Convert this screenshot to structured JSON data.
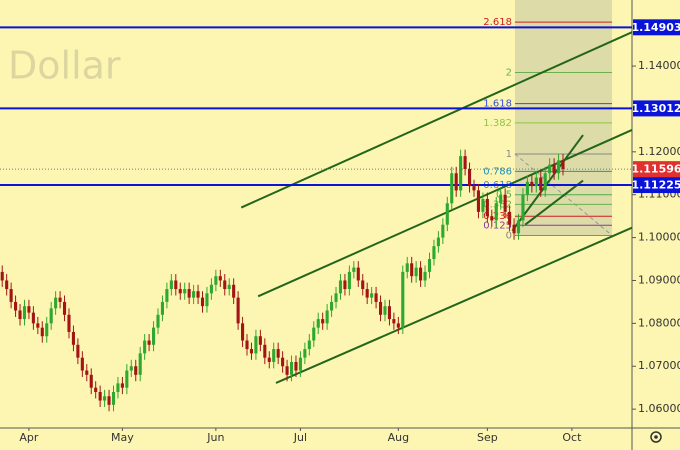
{
  "chart_data": {
    "type": "candlestick",
    "watermark": "Dollar",
    "up_color": "#2ea82e",
    "down_color": "#a31515",
    "xlim": [
      -0.5,
      141.5
    ],
    "xticks": [
      {
        "value": 6,
        "label": "Apr"
      },
      {
        "value": 27,
        "label": "May"
      },
      {
        "value": 48,
        "label": "Jun"
      },
      {
        "value": 67,
        "label": "Jul"
      },
      {
        "value": 89,
        "label": "Aug"
      },
      {
        "value": 109,
        "label": "Sep"
      },
      {
        "value": 128,
        "label": "Oct"
      }
    ],
    "ylim": [
      1.0556,
      1.1554
    ],
    "yticks": [
      {
        "value": 1.06,
        "label": "1.06000"
      },
      {
        "value": 1.07,
        "label": "1.07000"
      },
      {
        "value": 1.08,
        "label": "1.08000"
      },
      {
        "value": 1.09,
        "label": "1.09000"
      },
      {
        "value": 1.1,
        "label": "1.10000"
      },
      {
        "value": 1.11,
        "label": "1.11000"
      },
      {
        "value": 1.12,
        "label": "1.12000"
      },
      {
        "value": 1.14,
        "label": "1.14000"
      }
    ],
    "levels": [
      {
        "value": 1.14903,
        "color": "#0a14d8"
      },
      {
        "value": 1.13012,
        "color": "#0a14d8"
      },
      {
        "value": 1.11225,
        "color": "#0a14d8"
      }
    ],
    "last": {
      "value": 1.11596,
      "color": "#e03030"
    },
    "trend_color": "#23651a",
    "trend_lines": [
      {
        "x": [
          53.7,
          141.5
        ],
        "y": [
          1.107,
          1.1479
        ]
      },
      {
        "x": [
          57.5,
          141.5
        ],
        "y": [
          1.0863,
          1.1251
        ]
      },
      {
        "x": [
          61.5,
          141.5
        ],
        "y": [
          1.0661,
          1.1023
        ]
      },
      {
        "x": [
          114.6,
          130.5
        ],
        "y": [
          1.1016,
          1.1239
        ]
      },
      {
        "x": [
          117.5,
          130.5
        ],
        "y": [
          1.103,
          1.1133
        ]
      }
    ],
    "fib": {
      "x": [
        115.2,
        137
      ],
      "low": 1.1005,
      "high": 1.1195,
      "ratios": [
        2.618,
        2,
        1.618,
        1.382,
        1,
        0.786,
        0.618,
        0.5,
        0.382,
        0.236,
        0.125,
        0
      ],
      "colors": [
        "#d02020",
        "#6ab04c",
        "#3a4ee0",
        "#8cc63f",
        "#888888",
        "#1e90c0",
        "#3a7ee0",
        "#4caf50",
        "#6ab04c",
        "#d02020",
        "#8a3aa8",
        "#888888"
      ]
    },
    "ohlc": [
      [
        1.092,
        1.0935,
        1.0885,
        1.09
      ],
      [
        1.09,
        1.0915,
        1.0865,
        1.088
      ],
      [
        1.088,
        1.0895,
        1.0835,
        1.085
      ],
      [
        1.085,
        1.0865,
        1.0815,
        1.083
      ],
      [
        1.083,
        1.0845,
        1.0795,
        1.081
      ],
      [
        1.081,
        1.0855,
        1.0795,
        1.084
      ],
      [
        1.084,
        1.0855,
        1.081,
        1.0825
      ],
      [
        1.0825,
        1.084,
        1.0785,
        1.08
      ],
      [
        1.08,
        1.0815,
        1.0775,
        1.079
      ],
      [
        1.079,
        1.0805,
        1.0755,
        1.077
      ],
      [
        1.077,
        1.0815,
        1.0755,
        1.08
      ],
      [
        1.08,
        1.085,
        1.0785,
        1.0835
      ],
      [
        1.0835,
        1.0875,
        1.082,
        1.086
      ],
      [
        1.086,
        1.0875,
        1.0835,
        1.085
      ],
      [
        1.085,
        1.0865,
        1.0805,
        1.082
      ],
      [
        1.082,
        1.0835,
        1.0765,
        1.078
      ],
      [
        1.078,
        1.0795,
        1.0735,
        1.075
      ],
      [
        1.075,
        1.0765,
        1.0705,
        1.072
      ],
      [
        1.072,
        1.0735,
        1.0675,
        1.069
      ],
      [
        1.069,
        1.0705,
        1.0665,
        1.068
      ],
      [
        1.068,
        1.0695,
        1.0635,
        1.065
      ],
      [
        1.065,
        1.0665,
        1.0625,
        1.064
      ],
      [
        1.064,
        1.0655,
        1.0605,
        1.062
      ],
      [
        1.062,
        1.0645,
        1.0605,
        1.063
      ],
      [
        1.063,
        1.0645,
        1.0595,
        1.061
      ],
      [
        1.061,
        1.0655,
        1.0595,
        1.064
      ],
      [
        1.064,
        1.0675,
        1.0625,
        1.066
      ],
      [
        1.066,
        1.0675,
        1.0635,
        1.065
      ],
      [
        1.065,
        1.0705,
        1.0635,
        1.069
      ],
      [
        1.069,
        1.0715,
        1.0675,
        1.07
      ],
      [
        1.07,
        1.0715,
        1.0665,
        1.068
      ],
      [
        1.068,
        1.0745,
        1.0665,
        1.073
      ],
      [
        1.073,
        1.0775,
        1.0715,
        1.076
      ],
      [
        1.076,
        1.0775,
        1.0735,
        1.075
      ],
      [
        1.075,
        1.0805,
        1.0735,
        1.079
      ],
      [
        1.079,
        1.0835,
        1.0775,
        1.082
      ],
      [
        1.082,
        1.0865,
        1.0805,
        1.085
      ],
      [
        1.085,
        1.0895,
        1.0835,
        1.088
      ],
      [
        1.088,
        1.0915,
        1.0865,
        1.09
      ],
      [
        1.09,
        1.0915,
        1.0865,
        1.088
      ],
      [
        1.088,
        1.0895,
        1.0855,
        1.087
      ],
      [
        1.087,
        1.0895,
        1.0855,
        1.088
      ],
      [
        1.088,
        1.0895,
        1.0845,
        1.086
      ],
      [
        1.086,
        1.089,
        1.0845,
        1.0875
      ],
      [
        1.0875,
        1.089,
        1.0845,
        1.086
      ],
      [
        1.086,
        1.0875,
        1.0825,
        1.084
      ],
      [
        1.084,
        1.0885,
        1.0825,
        1.087
      ],
      [
        1.087,
        1.0905,
        1.0855,
        1.089
      ],
      [
        1.089,
        1.0925,
        1.0875,
        1.091
      ],
      [
        1.091,
        1.0925,
        1.0885,
        1.09
      ],
      [
        1.09,
        1.0915,
        1.0865,
        1.088
      ],
      [
        1.088,
        1.0905,
        1.0865,
        1.089
      ],
      [
        1.089,
        1.0905,
        1.0845,
        1.086
      ],
      [
        1.086,
        1.0875,
        1.0785,
        1.08
      ],
      [
        1.08,
        1.0815,
        1.0745,
        1.076
      ],
      [
        1.076,
        1.0775,
        1.0725,
        1.074
      ],
      [
        1.074,
        1.0755,
        1.0715,
        1.073
      ],
      [
        1.073,
        1.0785,
        1.0715,
        1.077
      ],
      [
        1.077,
        1.0785,
        1.0735,
        1.075
      ],
      [
        1.075,
        1.0765,
        1.0705,
        1.072
      ],
      [
        1.072,
        1.0735,
        1.0695,
        1.071
      ],
      [
        1.071,
        1.0755,
        1.0695,
        1.074
      ],
      [
        1.074,
        1.0755,
        1.0705,
        1.072
      ],
      [
        1.072,
        1.0735,
        1.0685,
        1.07
      ],
      [
        1.07,
        1.0715,
        1.0665,
        1.068
      ],
      [
        1.068,
        1.0725,
        1.0665,
        1.071
      ],
      [
        1.071,
        1.0725,
        1.0675,
        1.069
      ],
      [
        1.069,
        1.0735,
        1.0675,
        1.072
      ],
      [
        1.072,
        1.0755,
        1.0705,
        1.074
      ],
      [
        1.074,
        1.0775,
        1.0725,
        1.076
      ],
      [
        1.076,
        1.0805,
        1.0745,
        1.079
      ],
      [
        1.079,
        1.0825,
        1.0775,
        1.081
      ],
      [
        1.081,
        1.0825,
        1.0785,
        1.08
      ],
      [
        1.08,
        1.0845,
        1.0785,
        1.083
      ],
      [
        1.083,
        1.0865,
        1.0815,
        1.085
      ],
      [
        1.085,
        1.0885,
        1.0835,
        1.087
      ],
      [
        1.087,
        1.0915,
        1.0855,
        1.09
      ],
      [
        1.09,
        1.0915,
        1.0865,
        1.088
      ],
      [
        1.088,
        1.0935,
        1.0865,
        1.092
      ],
      [
        1.092,
        1.0945,
        1.0905,
        1.093
      ],
      [
        1.093,
        1.0945,
        1.0885,
        1.09
      ],
      [
        1.09,
        1.0915,
        1.0865,
        1.088
      ],
      [
        1.088,
        1.0895,
        1.0845,
        1.086
      ],
      [
        1.086,
        1.0885,
        1.0845,
        1.087
      ],
      [
        1.087,
        1.0885,
        1.0835,
        1.085
      ],
      [
        1.085,
        1.0865,
        1.0805,
        1.082
      ],
      [
        1.082,
        1.0855,
        1.0805,
        1.084
      ],
      [
        1.084,
        1.0855,
        1.0795,
        1.081
      ],
      [
        1.081,
        1.0825,
        1.0785,
        1.08
      ],
      [
        1.08,
        1.0815,
        1.0775,
        1.079
      ],
      [
        1.079,
        1.0935,
        1.0775,
        1.092
      ],
      [
        1.092,
        1.0955,
        1.0905,
        1.094
      ],
      [
        1.094,
        1.0955,
        1.0895,
        1.091
      ],
      [
        1.091,
        1.0945,
        1.0895,
        1.093
      ],
      [
        1.093,
        1.0945,
        1.0885,
        1.09
      ],
      [
        1.09,
        1.0935,
        1.0885,
        1.092
      ],
      [
        1.092,
        1.0965,
        1.0905,
        1.095
      ],
      [
        1.095,
        1.0995,
        1.0935,
        1.098
      ],
      [
        1.098,
        1.1015,
        1.0965,
        1.1
      ],
      [
        1.1,
        1.1045,
        1.0985,
        1.103
      ],
      [
        1.103,
        1.1095,
        1.1015,
        1.108
      ],
      [
        1.108,
        1.1165,
        1.1065,
        1.115
      ],
      [
        1.115,
        1.1165,
        1.1095,
        1.111
      ],
      [
        1.111,
        1.1205,
        1.1095,
        1.119
      ],
      [
        1.119,
        1.1205,
        1.1145,
        1.116
      ],
      [
        1.116,
        1.1175,
        1.1105,
        1.112
      ],
      [
        1.112,
        1.1135,
        1.1095,
        1.111
      ],
      [
        1.111,
        1.1125,
        1.1045,
        1.106
      ],
      [
        1.106,
        1.1105,
        1.1045,
        1.109
      ],
      [
        1.109,
        1.1105,
        1.1035,
        1.105
      ],
      [
        1.105,
        1.1065,
        1.1025,
        1.104
      ],
      [
        1.104,
        1.1095,
        1.1025,
        1.108
      ],
      [
        1.108,
        1.1115,
        1.1065,
        1.11
      ],
      [
        1.11,
        1.1115,
        1.1045,
        1.106
      ],
      [
        1.106,
        1.1075,
        1.1015,
        1.103
      ],
      [
        1.103,
        1.1045,
        1.0995,
        1.101
      ],
      [
        1.101,
        1.1055,
        1.0995,
        1.104
      ],
      [
        1.104,
        1.1115,
        1.1025,
        1.11
      ],
      [
        1.11,
        1.1145,
        1.1085,
        1.113
      ],
      [
        1.113,
        1.1145,
        1.1105,
        1.112
      ],
      [
        1.112,
        1.1155,
        1.1105,
        1.114
      ],
      [
        1.114,
        1.1155,
        1.1095,
        1.111
      ],
      [
        1.111,
        1.1165,
        1.1095,
        1.115
      ],
      [
        1.115,
        1.1185,
        1.1135,
        1.117
      ],
      [
        1.117,
        1.1185,
        1.1135,
        1.115
      ],
      [
        1.115,
        1.1195,
        1.1135,
        1.118
      ],
      [
        1.118,
        1.1195,
        1.1145,
        1.116
      ]
    ]
  }
}
